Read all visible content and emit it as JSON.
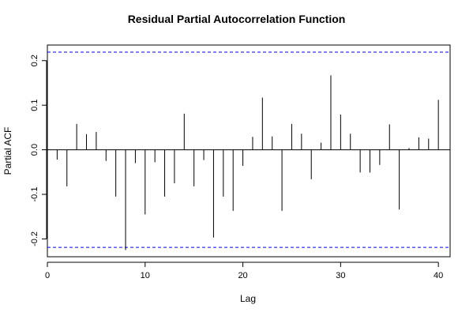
{
  "chart_data": {
    "type": "bar",
    "title": "Residual Partial Autocorrelation Function",
    "xlabel": "Lag",
    "ylabel": "Partial ACF",
    "xlim": [
      0,
      41.2
    ],
    "ylim": [
      -0.24,
      0.235
    ],
    "x_ticks": [
      0,
      10,
      20,
      30,
      40
    ],
    "y_ticks": [
      -0.2,
      -0.1,
      0.0,
      0.1,
      0.2
    ],
    "x_tick_labels": [
      "0",
      "10",
      "20",
      "30",
      "40"
    ],
    "y_tick_labels": [
      "-0.2",
      "-0.1",
      "0.0",
      "0.1",
      "0.2"
    ],
    "confidence_bounds": [
      0.219,
      -0.219
    ],
    "confidence_color": "#0000ff",
    "zero_line": true,
    "x": [
      1,
      2,
      3,
      4,
      5,
      6,
      7,
      8,
      9,
      10,
      11,
      12,
      13,
      14,
      15,
      16,
      17,
      18,
      19,
      20,
      21,
      22,
      23,
      24,
      25,
      26,
      27,
      28,
      29,
      30,
      31,
      32,
      33,
      34,
      35,
      36,
      37,
      38,
      39,
      40
    ],
    "values": [
      -0.022,
      -0.082,
      0.058,
      0.035,
      0.04,
      -0.025,
      -0.105,
      -0.225,
      -0.03,
      -0.145,
      -0.028,
      -0.105,
      -0.075,
      0.081,
      -0.082,
      -0.023,
      -0.197,
      -0.105,
      -0.137,
      -0.036,
      0.029,
      0.117,
      0.03,
      -0.137,
      0.058,
      0.036,
      -0.066,
      0.016,
      0.167,
      0.079,
      0.036,
      -0.051,
      -0.051,
      -0.034,
      0.057,
      -0.134,
      0.004,
      0.028,
      0.025,
      0.112
    ]
  }
}
